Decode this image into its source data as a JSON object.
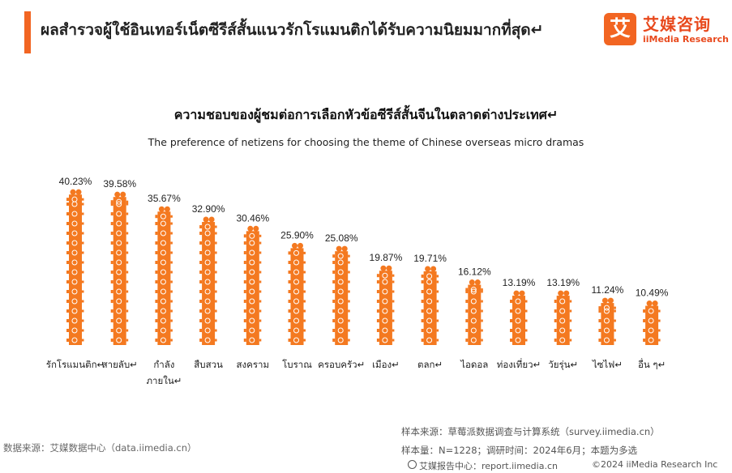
{
  "header": {
    "title": "ผลสำรวจผู้ใช้อินเทอร์เน็ตซีรีส์สั้นแนวรักโรแมนติกได้รับความนิยมมากที่สุด↵"
  },
  "logo": {
    "mark": "艾",
    "cn": "艾媒咨询",
    "en": "iiMedia Research"
  },
  "chart_data": {
    "type": "bar",
    "title": "ความชอบของผู้ชมต่อการเลือกหัวข้อซีรีส์สั้นจีนในตลาดต่างประเทศ↵",
    "subtitle": "The preference of netizens for choosing the theme of Chinese overseas micro dramas",
    "categories": [
      "รักโรแมนติก↵",
      "สายลับ↵",
      "กำลัง ภายใน↵",
      "สืบสวน",
      "สงคราม",
      "โบราณ",
      "ครอบครัว↵",
      "เมือง↵",
      "ตลก↵",
      "ไอดอล",
      "ท่องเที่ยว↵",
      "วัยรุ่น↵",
      "ไซไฟ↵",
      "อื่น ๆ↵"
    ],
    "category_lines": [
      [
        "รักโรแมนติก↵"
      ],
      [
        "สายลับ↵"
      ],
      [
        "กำลัง",
        "ภายใน↵"
      ],
      [
        "สืบสวน"
      ],
      [
        "สงคราม"
      ],
      [
        "โบราณ"
      ],
      [
        "ครอบครัว↵"
      ],
      [
        "เมือง↵"
      ],
      [
        "ตลก↵"
      ],
      [
        "ไอดอล"
      ],
      [
        "ท่องเที่ยว↵"
      ],
      [
        "วัยรุ่น↵"
      ],
      [
        "ไซไฟ↵"
      ],
      [
        "อื่น ๆ↵"
      ]
    ],
    "values": [
      40.23,
      39.58,
      35.67,
      32.9,
      30.46,
      25.9,
      25.08,
      19.87,
      19.71,
      16.12,
      13.19,
      13.19,
      11.24,
      10.49
    ],
    "value_labels": [
      "40.23%",
      "39.58%",
      "35.67%",
      "32.90%",
      "30.46%",
      "25.90%",
      "25.08%",
      "19.87%",
      "19.71%",
      "16.12%",
      "13.19%",
      "13.19%",
      "11.24%",
      "10.49%"
    ],
    "ylim": [
      0,
      42
    ],
    "grid": false,
    "legend": "none",
    "bar_style": "stacked film-camera pictograms",
    "bar_color": "#f47920"
  },
  "footer": {
    "source": "数据来源：艾媒数据中心（data.iimedia.cn）",
    "sample_source": "样本来源：草莓派数据调查与计算系统（survey.iimedia.cn）",
    "sample_size": "样本量：N=1228；调研时间：2024年6月；本题为多选",
    "report": "艾媒报告中心：report.iimedia.cn",
    "copyright": "©2024  iiMedia Research  Inc"
  }
}
